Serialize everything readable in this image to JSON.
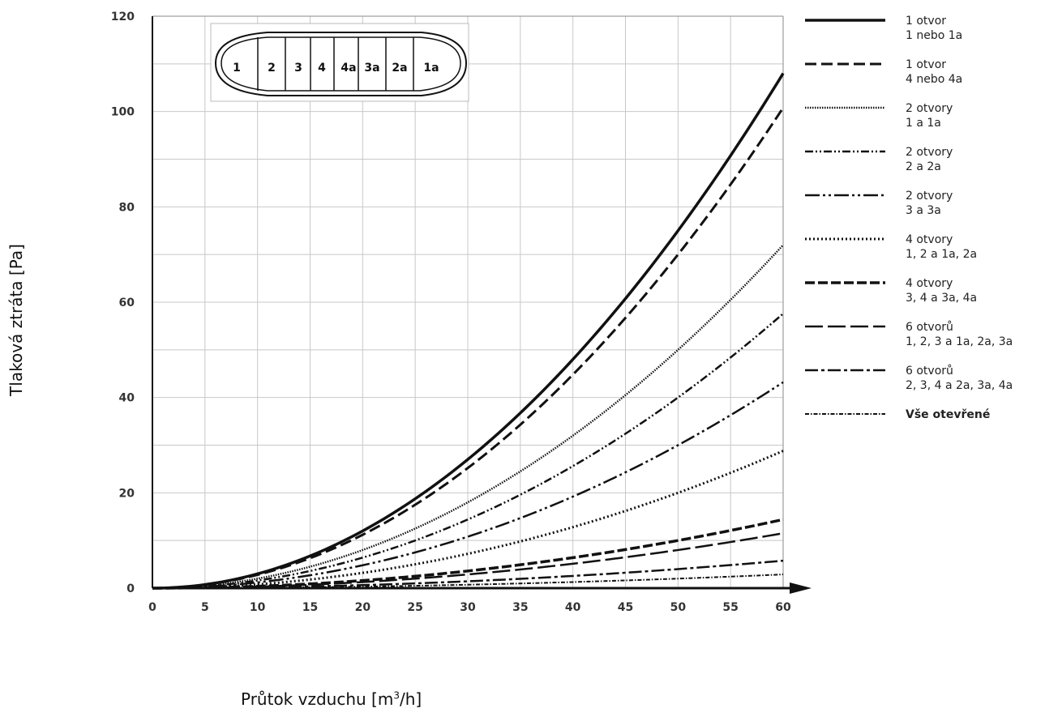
{
  "chart_data": {
    "type": "line",
    "xlabel": "Průtok vzduchu [m",
    "xlabel_sup": "3",
    "xlabel_end": "/h]",
    "ylabel": "Tlaková ztráta [Pa]",
    "xlim": [
      0,
      60
    ],
    "ylim": [
      0,
      120
    ],
    "x_ticks": [
      "0",
      "5",
      "10",
      "15",
      "20",
      "25",
      "30",
      "35",
      "40",
      "45",
      "50",
      "55",
      "60"
    ],
    "y_ticks": [
      "0",
      "20",
      "40",
      "60",
      "80",
      "100",
      "120"
    ],
    "grid": true,
    "legend_position": "right",
    "x": [
      0,
      5,
      10,
      15,
      20,
      25,
      30,
      35,
      40,
      45,
      50,
      55,
      60
    ],
    "series": [
      {
        "name": "1 otvor",
        "name_line2": "1 nebo 1a",
        "style": "solid",
        "values": [
          0,
          0.75,
          3,
          6.75,
          12,
          18.75,
          27,
          36.75,
          48,
          60.75,
          75,
          90.75,
          108
        ]
      },
      {
        "name": "1 otvor",
        "name_line2": "4 nebo 4a",
        "style": "dashed",
        "values": [
          0,
          0.7,
          2.8,
          6.3,
          11.2,
          17.5,
          25.2,
          34.3,
          44.8,
          56.7,
          70,
          84.7,
          100.8
        ]
      },
      {
        "name": "2 otvory",
        "name_line2": "1 a 1a",
        "style": "fine-dotted",
        "values": [
          0,
          0.5,
          2,
          4.5,
          8,
          12.5,
          18,
          24.5,
          32,
          40.5,
          50,
          60.5,
          72
        ]
      },
      {
        "name": "2 otvory",
        "name_line2": "2 a 2a",
        "style": "dash-dot-dot",
        "values": [
          0,
          0.4,
          1.6,
          3.6,
          6.4,
          10,
          14.4,
          19.6,
          25.6,
          32.4,
          40,
          48.4,
          57.6
        ]
      },
      {
        "name": "2 otvory",
        "name_line2": "3 a 3a",
        "style": "long-dash-dot-dot",
        "values": [
          0,
          0.3,
          1.2,
          2.7,
          4.8,
          7.5,
          10.8,
          14.7,
          19.2,
          24.3,
          30,
          36.3,
          43.2
        ]
      },
      {
        "name": "4 otvory",
        "name_line2": "1, 2 a 1a, 2a",
        "style": "dotted",
        "values": [
          0,
          0.2,
          0.8,
          1.8,
          3.2,
          5,
          7.2,
          9.8,
          12.8,
          16.2,
          20,
          24.2,
          28.8
        ]
      },
      {
        "name": "4 otvory",
        "name_line2": "3, 4 a 3a, 4a",
        "style": "heavy-dashed",
        "values": [
          0,
          0.1,
          0.4,
          0.9,
          1.6,
          2.5,
          3.6,
          4.9,
          6.4,
          8.1,
          10,
          12.1,
          14.4
        ]
      },
      {
        "name": "6 otvorů",
        "name_line2": "1, 2, 3 a 1a, 2a, 3a",
        "style": "long-dashed",
        "values": [
          0,
          0.08,
          0.32,
          0.72,
          1.28,
          2,
          2.88,
          3.92,
          5.12,
          6.48,
          8,
          9.68,
          11.52
        ]
      },
      {
        "name": "6 otvorů",
        "name_line2": "2, 3, 4 a 2a, 3a, 4a",
        "style": "dash-dot",
        "values": [
          0,
          0.04,
          0.16,
          0.36,
          0.64,
          1,
          1.44,
          1.96,
          2.56,
          3.24,
          4,
          4.84,
          5.76
        ]
      },
      {
        "name": "Vše otevřené",
        "name_line2": "",
        "style": "fine-dash-dot",
        "values": [
          0,
          0.02,
          0.08,
          0.18,
          0.32,
          0.5,
          0.72,
          0.98,
          1.28,
          1.62,
          2,
          2.42,
          2.88
        ]
      }
    ],
    "inset_segments": [
      "1",
      "2",
      "3",
      "4",
      "4a",
      "3a",
      "2a",
      "1a"
    ]
  },
  "legend_bold_word": [
    "",
    "",
    "",
    "",
    "",
    "",
    "",
    "",
    "",
    ""
  ]
}
